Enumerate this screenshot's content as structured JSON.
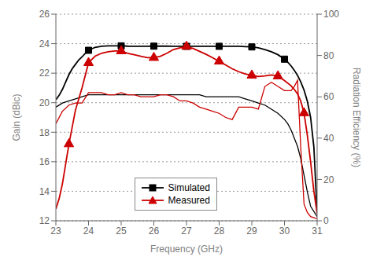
{
  "chart_data": {
    "type": "line",
    "xlabel": "Frequency (GHz)",
    "ylabel": "Gain (dBic)",
    "y2label": "Radiation Efficiency (%)",
    "xlim": [
      23,
      31
    ],
    "xticks": [
      23,
      24,
      25,
      26,
      27,
      28,
      29,
      30,
      31
    ],
    "ylim": [
      12,
      26
    ],
    "yticks": [
      12,
      14,
      16,
      18,
      20,
      22,
      24,
      26
    ],
    "y2lim": [
      0,
      100
    ],
    "y2ticks": [
      0,
      20,
      40,
      60,
      80,
      100
    ],
    "grid": true,
    "legend": "lower left",
    "series": [
      {
        "type": "line",
        "axis": "y2",
        "color": "#000000",
        "x": [
          23.0,
          23.2,
          23.4,
          23.6,
          23.8,
          24.0,
          24.2,
          24.4,
          24.6,
          24.8,
          25.0,
          25.2,
          25.4,
          25.6,
          25.8,
          26.0,
          26.2,
          26.4,
          26.6,
          26.8,
          27.0,
          27.2,
          27.4,
          27.6,
          27.8,
          28.0,
          28.2,
          28.4,
          28.6,
          28.8,
          29.0,
          29.2,
          29.4,
          29.6,
          29.8,
          30.0,
          30.1,
          30.2,
          30.3,
          30.4,
          30.5,
          30.6,
          30.7,
          30.8,
          31.0
        ],
        "values": [
          55,
          57,
          58,
          59,
          60,
          61,
          61,
          61,
          61,
          61,
          61,
          61,
          61,
          61,
          61,
          61,
          61,
          61,
          61,
          61,
          61,
          61,
          61,
          60,
          60,
          60,
          60,
          60,
          60,
          59,
          58,
          57,
          56,
          54,
          52,
          49,
          47,
          44,
          40,
          36,
          30,
          22,
          14,
          7,
          2
        ]
      },
      {
        "type": "line",
        "axis": "y2",
        "color": "#cc0000",
        "x": [
          23.0,
          23.2,
          23.4,
          23.6,
          23.8,
          24.0,
          24.2,
          24.4,
          24.6,
          24.8,
          25.0,
          25.2,
          25.4,
          25.6,
          25.8,
          26.0,
          26.2,
          26.4,
          26.6,
          26.8,
          27.0,
          27.2,
          27.4,
          27.6,
          27.8,
          28.0,
          28.2,
          28.4,
          28.6,
          28.8,
          29.0,
          29.2,
          29.4,
          29.6,
          29.8,
          30.0,
          30.1,
          30.2,
          30.3,
          30.4,
          30.5,
          30.6,
          30.7,
          30.8,
          31.0
        ],
        "values": [
          47,
          53,
          56,
          57,
          57,
          62,
          62,
          62,
          61,
          61,
          62,
          61,
          61,
          60,
          60,
          60,
          61,
          61,
          60,
          58,
          58,
          57,
          55,
          54,
          53,
          52,
          50,
          49,
          55,
          55,
          55,
          54,
          65,
          67,
          65,
          63,
          63,
          63,
          65,
          68,
          35,
          8,
          4,
          2,
          1
        ]
      },
      {
        "type": "line",
        "name": "Simulated",
        "color": "#000000",
        "x": [
          23.0,
          23.1,
          23.2,
          23.3,
          23.4,
          23.5,
          23.6,
          23.7,
          23.8,
          23.9,
          24.0,
          24.2,
          24.4,
          24.6,
          24.8,
          25.0,
          25.2,
          25.4,
          25.6,
          25.8,
          26.0,
          26.2,
          26.4,
          26.6,
          26.8,
          27.0,
          27.2,
          27.4,
          27.6,
          27.8,
          28.0,
          28.2,
          28.4,
          28.6,
          28.8,
          29.0,
          29.2,
          29.4,
          29.6,
          29.8,
          30.0,
          30.1,
          30.2,
          30.3,
          30.4,
          30.5,
          30.6,
          30.7,
          30.8,
          30.9,
          31.0
        ],
        "values": [
          20.2,
          20.5,
          20.9,
          21.4,
          21.9,
          22.3,
          22.6,
          22.9,
          23.1,
          23.35,
          23.55,
          23.75,
          23.82,
          23.85,
          23.85,
          23.85,
          23.83,
          23.82,
          23.82,
          23.82,
          23.83,
          23.83,
          23.83,
          23.82,
          23.82,
          23.82,
          23.82,
          23.82,
          23.82,
          23.82,
          23.82,
          23.82,
          23.82,
          23.82,
          23.8,
          23.78,
          23.72,
          23.6,
          23.45,
          23.25,
          22.95,
          22.75,
          22.5,
          22.2,
          21.85,
          21.4,
          20.85,
          20.1,
          19.0,
          17.0,
          12.5
        ]
      },
      {
        "type": "scatter",
        "marker": "square",
        "color": "#000000",
        "x": [
          24.0,
          25.0,
          26.0,
          27.0,
          28.0,
          29.0,
          30.0
        ],
        "values": [
          23.55,
          23.85,
          23.83,
          23.82,
          23.82,
          23.78,
          22.95
        ]
      },
      {
        "type": "line",
        "name": "Measured",
        "color": "#cc0000",
        "x": [
          23.0,
          23.1,
          23.2,
          23.4,
          23.6,
          23.8,
          24.0,
          24.2,
          24.4,
          24.6,
          24.8,
          25.0,
          25.2,
          25.4,
          25.6,
          25.8,
          26.0,
          26.2,
          26.4,
          26.6,
          26.8,
          27.0,
          27.2,
          27.4,
          27.6,
          27.8,
          28.0,
          28.2,
          28.4,
          28.6,
          28.8,
          29.0,
          29.2,
          29.4,
          29.6,
          29.8,
          30.0,
          30.2,
          30.3,
          30.4,
          30.5,
          30.6,
          30.7,
          30.8,
          30.9,
          31.0
        ],
        "values": [
          12.8,
          13.5,
          14.5,
          17.2,
          19.5,
          21.0,
          22.7,
          23.15,
          23.35,
          23.45,
          23.5,
          23.5,
          23.35,
          23.25,
          23.15,
          23.05,
          23.05,
          23.15,
          23.35,
          23.6,
          23.72,
          23.8,
          23.68,
          23.48,
          23.28,
          23.05,
          22.8,
          22.55,
          22.3,
          22.1,
          21.95,
          21.85,
          21.78,
          21.82,
          21.88,
          21.8,
          21.5,
          21.15,
          20.9,
          20.6,
          20.1,
          19.3,
          17.8,
          16.0,
          14.0,
          12.5
        ]
      },
      {
        "type": "scatter",
        "marker": "triangle",
        "color": "#cc0000",
        "x": [
          23.4,
          24.0,
          25.0,
          26.0,
          27.0,
          28.0,
          29.0,
          29.8,
          30.6
        ],
        "values": [
          17.2,
          22.7,
          23.5,
          23.05,
          23.8,
          22.8,
          21.85,
          21.8,
          19.3
        ]
      }
    ]
  }
}
